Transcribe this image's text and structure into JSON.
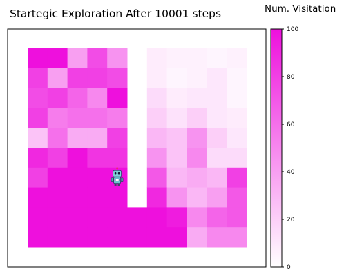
{
  "chart_data": {
    "type": "heatmap",
    "title": "Startegic Exploration After 10001 steps",
    "colorbar": {
      "label": "Num. Visitation",
      "range": [
        0,
        100
      ],
      "ticks": [
        "0",
        "20",
        "40",
        "60",
        "80",
        "100"
      ],
      "color_low": "#ffffff",
      "color_high": "#ee10dd"
    },
    "grid": {
      "rows": 10,
      "cols": 11
    },
    "wall_cells": [
      [
        0,
        5
      ],
      [
        1,
        5
      ],
      [
        2,
        5
      ],
      [
        3,
        5
      ],
      [
        4,
        5
      ],
      [
        5,
        5
      ],
      [
        6,
        5
      ],
      [
        7,
        5
      ]
    ],
    "values": [
      [
        100,
        100,
        40,
        75,
        45,
        null,
        8,
        6,
        6,
        4,
        6
      ],
      [
        80,
        40,
        80,
        80,
        75,
        null,
        8,
        4,
        6,
        10,
        4
      ],
      [
        75,
        80,
        65,
        50,
        100,
        null,
        15,
        8,
        10,
        10,
        4
      ],
      [
        80,
        55,
        60,
        60,
        55,
        null,
        20,
        12,
        20,
        10,
        8
      ],
      [
        25,
        60,
        35,
        35,
        80,
        null,
        30,
        25,
        45,
        20,
        10
      ],
      [
        90,
        80,
        100,
        85,
        85,
        null,
        45,
        25,
        50,
        15,
        15
      ],
      [
        80,
        100,
        100,
        100,
        100,
        null,
        70,
        30,
        35,
        30,
        80
      ],
      [
        100,
        100,
        100,
        100,
        100,
        null,
        90,
        45,
        30,
        40,
        70
      ],
      [
        100,
        100,
        100,
        100,
        100,
        100,
        100,
        95,
        50,
        65,
        70
      ],
      [
        100,
        100,
        100,
        100,
        100,
        100,
        100,
        100,
        35,
        50,
        50
      ]
    ],
    "agent": {
      "row": 6,
      "col": 4,
      "icon": "robot-icon"
    }
  }
}
